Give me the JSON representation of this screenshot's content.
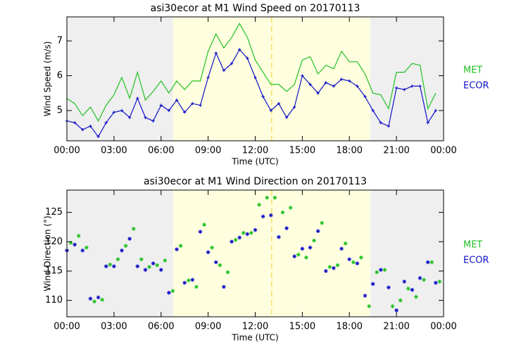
{
  "chart_data": [
    {
      "type": "line",
      "title": "asi30ecor at M1 Wind Speed on 20170113",
      "x_label": "Time (UTC)",
      "y_label": "Wind Speed (m/s)",
      "xlim": [
        0,
        24
      ],
      "ylim": [
        4.13,
        7.69
      ],
      "xticks": [
        {
          "value": 0,
          "label": "00:00"
        },
        {
          "value": 3,
          "label": "03:00"
        },
        {
          "value": 6,
          "label": "06:00"
        },
        {
          "value": 9,
          "label": "09:00"
        },
        {
          "value": 12,
          "label": "12:00"
        },
        {
          "value": 15,
          "label": "15:00"
        },
        {
          "value": 18,
          "label": "18:00"
        },
        {
          "value": 21,
          "label": "21:00"
        },
        {
          "value": 24,
          "label": "00:00"
        }
      ],
      "yticks": [
        5,
        6,
        7
      ],
      "shaded_spans": [
        {
          "x": [
            0,
            6.77
          ],
          "color": "#efefef"
        },
        {
          "x": [
            6.77,
            19.33
          ],
          "color": "#ffffe0"
        },
        {
          "x": [
            19.33,
            24
          ],
          "color": "#efefef"
        }
      ],
      "vline": {
        "x": 13.05,
        "color": "#f5d442"
      },
      "legend": "right",
      "series": [
        {
          "name": "MET",
          "color": "#22c022",
          "marker": "none",
          "x": [
            0,
            0.5,
            1,
            1.5,
            2,
            2.5,
            3,
            3.5,
            4,
            4.5,
            5,
            5.5,
            6,
            6.5,
            7,
            7.5,
            8,
            8.5,
            9,
            9.5,
            10,
            10.5,
            11,
            11.5,
            12,
            12.5,
            13,
            13.5,
            14,
            14.5,
            15,
            15.5,
            16,
            16.5,
            17,
            17.5,
            18,
            18.5,
            19,
            19.5,
            20,
            20.5,
            21,
            21.5,
            22,
            22.5,
            23,
            23.5
          ],
          "values": [
            5.35,
            5.2,
            4.85,
            5.1,
            4.7,
            5.15,
            5.45,
            5.95,
            5.35,
            6.1,
            5.3,
            5.55,
            5.85,
            5.5,
            5.85,
            5.6,
            5.85,
            5.85,
            6.7,
            7.2,
            6.8,
            7.1,
            7.5,
            7.1,
            6.45,
            6.1,
            5.75,
            5.75,
            5.55,
            5.75,
            6.45,
            6.55,
            6.05,
            6.3,
            6.2,
            6.7,
            6.4,
            6.4,
            6.05,
            5.5,
            5.45,
            5.05,
            6.1,
            6.1,
            6.35,
            6.3,
            5.05,
            5.5
          ]
        },
        {
          "name": "ECOR",
          "color": "#1010c8",
          "marker": "plus",
          "x": [
            0,
            0.5,
            1,
            1.5,
            2,
            2.5,
            3,
            3.5,
            4,
            4.5,
            5,
            5.5,
            6,
            6.5,
            7,
            7.5,
            8,
            8.5,
            9,
            9.5,
            10,
            10.5,
            11,
            11.5,
            12,
            12.5,
            13,
            13.5,
            14,
            14.5,
            15,
            15.5,
            16,
            16.5,
            17,
            17.5,
            18,
            18.5,
            19,
            19.5,
            20,
            20.5,
            21,
            21.5,
            22,
            22.5,
            23,
            23.5
          ],
          "values": [
            4.7,
            4.65,
            4.45,
            4.55,
            4.25,
            4.65,
            4.95,
            5.0,
            4.8,
            5.35,
            4.8,
            4.7,
            5.15,
            5.0,
            5.3,
            4.95,
            5.2,
            5.15,
            5.95,
            6.65,
            6.15,
            6.35,
            6.75,
            6.5,
            5.95,
            5.4,
            5.0,
            5.2,
            4.8,
            5.1,
            6.0,
            5.75,
            5.5,
            5.8,
            5.7,
            5.9,
            5.85,
            5.7,
            5.4,
            5.0,
            4.65,
            4.55,
            5.65,
            5.6,
            5.7,
            5.7,
            4.65,
            5.0
          ]
        }
      ]
    },
    {
      "type": "scatter",
      "title": "asi30ecor at M1 Wind Direction on 20170113",
      "x_label": "Time (UTC)",
      "y_label": "Wind Direction (°)",
      "xlim": [
        0,
        24
      ],
      "ylim": [
        107.2,
        128.8
      ],
      "xticks": [
        {
          "value": 0,
          "label": "00:00"
        },
        {
          "value": 3,
          "label": "03:00"
        },
        {
          "value": 6,
          "label": "06:00"
        },
        {
          "value": 9,
          "label": "09:00"
        },
        {
          "value": 12,
          "label": "12:00"
        },
        {
          "value": 15,
          "label": "15:00"
        },
        {
          "value": 18,
          "label": "18:00"
        },
        {
          "value": 21,
          "label": "21:00"
        },
        {
          "value": 24,
          "label": "00:00"
        }
      ],
      "yticks": [
        110,
        115,
        120,
        125
      ],
      "shaded_spans": [
        {
          "x": [
            0,
            6.77
          ],
          "color": "#efefef"
        },
        {
          "x": [
            6.77,
            19.33
          ],
          "color": "#ffffe0"
        },
        {
          "x": [
            19.33,
            24
          ],
          "color": "#efefef"
        }
      ],
      "vline": {
        "x": 13.05,
        "color": "#f5d442"
      },
      "legend": "right",
      "series": [
        {
          "name": "MET",
          "color": "#22c022",
          "marker": "asterisk",
          "x": [
            0.25,
            0.75,
            1.25,
            1.75,
            2.25,
            2.75,
            3.25,
            3.75,
            4.25,
            4.75,
            5.25,
            5.75,
            6.25,
            6.75,
            7.25,
            7.75,
            8.25,
            8.75,
            9.25,
            9.75,
            10.25,
            10.75,
            11.25,
            11.75,
            12.25,
            12.75,
            13.25,
            13.75,
            14.25,
            14.75,
            15.25,
            15.75,
            16.25,
            16.75,
            17.25,
            17.75,
            18.25,
            18.75,
            19.25,
            19.75,
            20.25,
            20.75,
            21.25,
            21.75,
            22.25,
            22.75,
            23.25,
            23.75
          ],
          "values": [
            119.8,
            121.0,
            119.0,
            109.8,
            110.1,
            116.1,
            117.0,
            119.3,
            122.2,
            117.0,
            115.7,
            116.0,
            116.8,
            111.6,
            119.3,
            113.4,
            112.3,
            122.9,
            119.0,
            116.0,
            114.8,
            120.3,
            121.5,
            121.5,
            126.3,
            127.5,
            127.5,
            125.0,
            125.8,
            117.8,
            117.3,
            120.2,
            123.2,
            115.7,
            116.0,
            119.7,
            116.5,
            117.3,
            109.0,
            114.8,
            115.2,
            109.0,
            110.0,
            112.0,
            110.6,
            113.5,
            116.5,
            113.2
          ]
        },
        {
          "name": "ECOR",
          "color": "#1010c8",
          "marker": "asterisk",
          "x": [
            0,
            0.5,
            1,
            1.5,
            2,
            2.5,
            3,
            3.5,
            4,
            4.5,
            5,
            5.5,
            6,
            6.5,
            7,
            7.5,
            8,
            8.5,
            9,
            9.5,
            10,
            10.5,
            11,
            11.5,
            12,
            12.5,
            13,
            13.5,
            14,
            14.5,
            15,
            15.5,
            16,
            16.5,
            17,
            17.5,
            18,
            18.5,
            19,
            19.5,
            20,
            20.5,
            21,
            21.5,
            22,
            22.5,
            23,
            23.5
          ],
          "values": [
            118.5,
            119.5,
            118.5,
            110.3,
            110.5,
            115.8,
            115.8,
            118.5,
            120.5,
            115.8,
            115.2,
            116.3,
            115.2,
            111.3,
            118.7,
            113.0,
            113.5,
            121.7,
            118.2,
            116.5,
            112.3,
            120.0,
            120.7,
            121.3,
            122.0,
            124.3,
            124.5,
            120.8,
            122.3,
            117.5,
            118.8,
            119.0,
            121.8,
            115.0,
            115.5,
            118.8,
            117.0,
            116.3,
            110.8,
            112.8,
            115.2,
            112.2,
            108.3,
            113.2,
            111.8,
            113.8,
            116.5,
            113.0
          ]
        }
      ]
    }
  ]
}
